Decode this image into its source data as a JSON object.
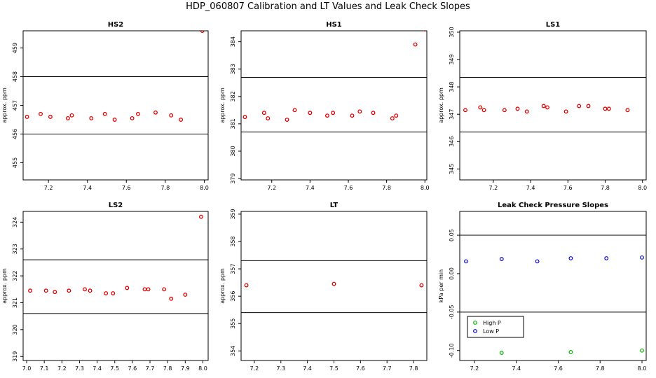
{
  "title": "HDP_060807  Calibration and LT Values and Leak Check Slopes",
  "colors": {
    "points": "#e00000",
    "high_p": "#00b000",
    "low_p": "#0000cc",
    "axis": "#000000"
  },
  "chart_data": [
    {
      "type": "scatter",
      "title": "HS2",
      "ylabel": "approx. ppm",
      "xlim": [
        7.07,
        8.02
      ],
      "ylim": [
        454.4,
        459.6
      ],
      "xticks": [
        "7.2",
        "7.4",
        "7.6",
        "7.8",
        "8.0"
      ],
      "xtick_values": [
        7.2,
        7.4,
        7.6,
        7.8,
        8.0
      ],
      "yticks": [
        "455",
        "456",
        "457",
        "458",
        "459"
      ],
      "ytick_values": [
        455,
        456,
        457,
        458,
        459
      ],
      "hlines": [
        458.0,
        456.0
      ],
      "x": [
        7.09,
        7.16,
        7.21,
        7.3,
        7.32,
        7.42,
        7.49,
        7.54,
        7.63,
        7.66,
        7.75,
        7.83,
        7.88,
        7.99
      ],
      "y": [
        456.6,
        456.7,
        456.6,
        456.55,
        456.65,
        456.55,
        456.7,
        456.5,
        456.55,
        456.7,
        456.75,
        456.65,
        456.5,
        459.6
      ]
    },
    {
      "type": "scatter",
      "title": "HS1",
      "ylabel": "approx. ppm",
      "xlim": [
        7.04,
        8.01
      ],
      "ylim": [
        378.95,
        384.4
      ],
      "xticks": [
        "7.2",
        "7.4",
        "7.6",
        "7.8",
        "8.0"
      ],
      "xtick_values": [
        7.2,
        7.4,
        7.6,
        7.8,
        8.0
      ],
      "yticks": [
        "379",
        "380",
        "381",
        "382",
        "383",
        "384"
      ],
      "ytick_values": [
        379,
        380,
        381,
        382,
        383,
        384
      ],
      "hlines": [
        382.7,
        380.7
      ],
      "x": [
        7.06,
        7.16,
        7.18,
        7.28,
        7.32,
        7.4,
        7.49,
        7.52,
        7.62,
        7.66,
        7.73,
        7.83,
        7.85,
        7.95,
        8.0
      ],
      "y": [
        381.25,
        381.4,
        381.2,
        381.15,
        381.5,
        381.4,
        381.3,
        381.4,
        381.3,
        381.45,
        381.4,
        381.2,
        381.3,
        383.9,
        384.45
      ]
    },
    {
      "type": "scatter",
      "title": "LS1",
      "ylabel": "approx. ppm",
      "xlim": [
        7.02,
        8.02
      ],
      "ylim": [
        344.6,
        350.05
      ],
      "xticks": [
        "7.2",
        "7.4",
        "7.6",
        "7.8",
        "8.0"
      ],
      "xtick_values": [
        7.2,
        7.4,
        7.6,
        7.8,
        8.0
      ],
      "yticks": [
        "345",
        "346",
        "347",
        "348",
        "349",
        "350"
      ],
      "ytick_values": [
        345,
        346,
        347,
        348,
        349,
        350
      ],
      "hlines": [
        348.35,
        346.35
      ],
      "x": [
        7.05,
        7.13,
        7.15,
        7.26,
        7.33,
        7.38,
        7.47,
        7.49,
        7.59,
        7.66,
        7.71,
        7.8,
        7.82,
        7.92
      ],
      "y": [
        347.15,
        347.25,
        347.15,
        347.15,
        347.2,
        347.1,
        347.3,
        347.25,
        347.1,
        347.3,
        347.3,
        347.2,
        347.2,
        347.15
      ]
    },
    {
      "type": "scatter",
      "title": "LS2",
      "ylabel": "approx. ppm",
      "xlim": [
        6.98,
        8.03
      ],
      "ylim": [
        318.85,
        324.4
      ],
      "xticks": [
        "7.0",
        "7.1",
        "7.2",
        "7.3",
        "7.4",
        "7.5",
        "7.6",
        "7.7",
        "7.8",
        "7.9",
        "8.0"
      ],
      "xtick_values": [
        7.0,
        7.1,
        7.2,
        7.3,
        7.4,
        7.5,
        7.6,
        7.7,
        7.8,
        7.9,
        8.0
      ],
      "yticks": [
        "319",
        "320",
        "321",
        "322",
        "323",
        "324"
      ],
      "ytick_values": [
        319,
        320,
        321,
        322,
        323,
        324
      ],
      "hlines": [
        322.6,
        320.6
      ],
      "x": [
        7.02,
        7.11,
        7.16,
        7.24,
        7.33,
        7.36,
        7.45,
        7.49,
        7.57,
        7.67,
        7.69,
        7.78,
        7.82,
        7.9,
        7.99
      ],
      "y": [
        321.45,
        321.45,
        321.4,
        321.45,
        321.5,
        321.45,
        321.35,
        321.35,
        321.55,
        321.5,
        321.5,
        321.5,
        321.15,
        321.3,
        324.2
      ]
    },
    {
      "type": "scatter",
      "title": "LT",
      "ylabel": "approx. ppm",
      "xlim": [
        7.15,
        7.85
      ],
      "ylim": [
        353.65,
        359.1
      ],
      "xticks": [
        "7.2",
        "7.3",
        "7.4",
        "7.5",
        "7.6",
        "7.7",
        "7.8"
      ],
      "xtick_values": [
        7.2,
        7.3,
        7.4,
        7.5,
        7.6,
        7.7,
        7.8
      ],
      "yticks": [
        "354",
        "355",
        "356",
        "357",
        "358",
        "359"
      ],
      "ytick_values": [
        354,
        355,
        356,
        357,
        358,
        359
      ],
      "hlines": [
        357.3,
        355.4
      ],
      "x": [
        7.17,
        7.5,
        7.83
      ],
      "y": [
        356.4,
        356.45,
        356.4
      ]
    },
    {
      "type": "scatter",
      "title": "Leak Check Pressure Slopes",
      "ylabel": "kPa per min",
      "xlim": [
        7.13,
        8.02
      ],
      "ylim": [
        -0.113,
        0.081
      ],
      "xticks": [
        "7.2",
        "7.4",
        "7.6",
        "7.8",
        "8.0"
      ],
      "xtick_values": [
        7.2,
        7.4,
        7.6,
        7.8,
        8.0
      ],
      "yticks": [
        "-0.10",
        "-0.05",
        "0.00",
        "0.05"
      ],
      "ytick_values": [
        -0.1,
        -0.05,
        0.0,
        0.05
      ],
      "hlines": [
        0.05,
        -0.05
      ],
      "legend": {
        "position": "bottom-left",
        "entries": [
          "High P",
          "Low P"
        ]
      },
      "series": [
        {
          "name": "High P",
          "x": [
            7.33,
            7.66,
            8.0
          ],
          "y": [
            -0.103,
            -0.102,
            -0.1
          ]
        },
        {
          "name": "Low P",
          "x": [
            7.16,
            7.33,
            7.5,
            7.66,
            7.83,
            8.0
          ],
          "y": [
            0.016,
            0.019,
            0.016,
            0.02,
            0.02,
            0.021
          ]
        }
      ]
    }
  ]
}
